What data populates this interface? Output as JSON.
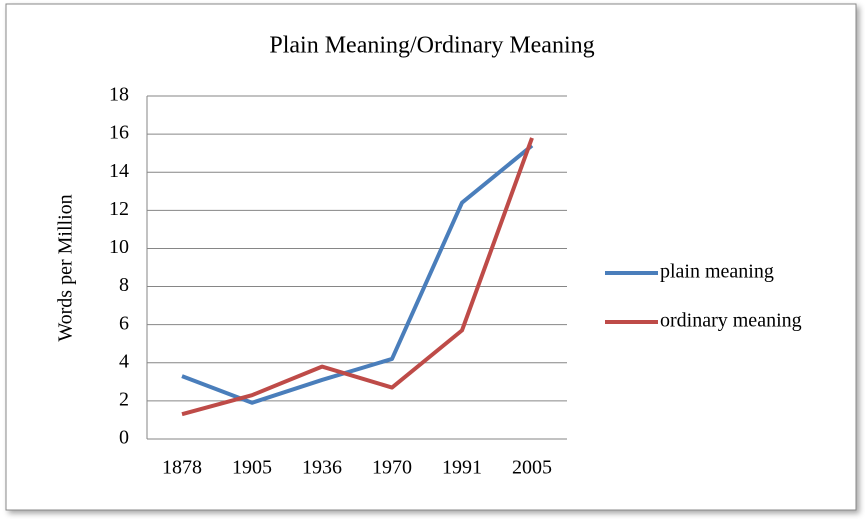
{
  "chart_data": {
    "type": "line",
    "title": "Plain Meaning/Ordinary Meaning",
    "y_label": "Words per Million",
    "categories": [
      "1878",
      "1905",
      "1936",
      "1970",
      "1991",
      "2005"
    ],
    "series": [
      {
        "name": "plain meaning",
        "color": "#4a7ebb",
        "values": [
          3.3,
          1.9,
          3.1,
          4.2,
          12.4,
          15.4
        ]
      },
      {
        "name": "ordinary meaning",
        "color": "#be4b48",
        "values": [
          1.3,
          2.3,
          3.8,
          2.7,
          5.7,
          15.8
        ]
      }
    ],
    "ylim": [
      0,
      18
    ],
    "yticks": [
      0,
      2,
      4,
      6,
      8,
      10,
      12,
      14,
      16,
      18
    ],
    "grid": true,
    "legend": "right"
  }
}
